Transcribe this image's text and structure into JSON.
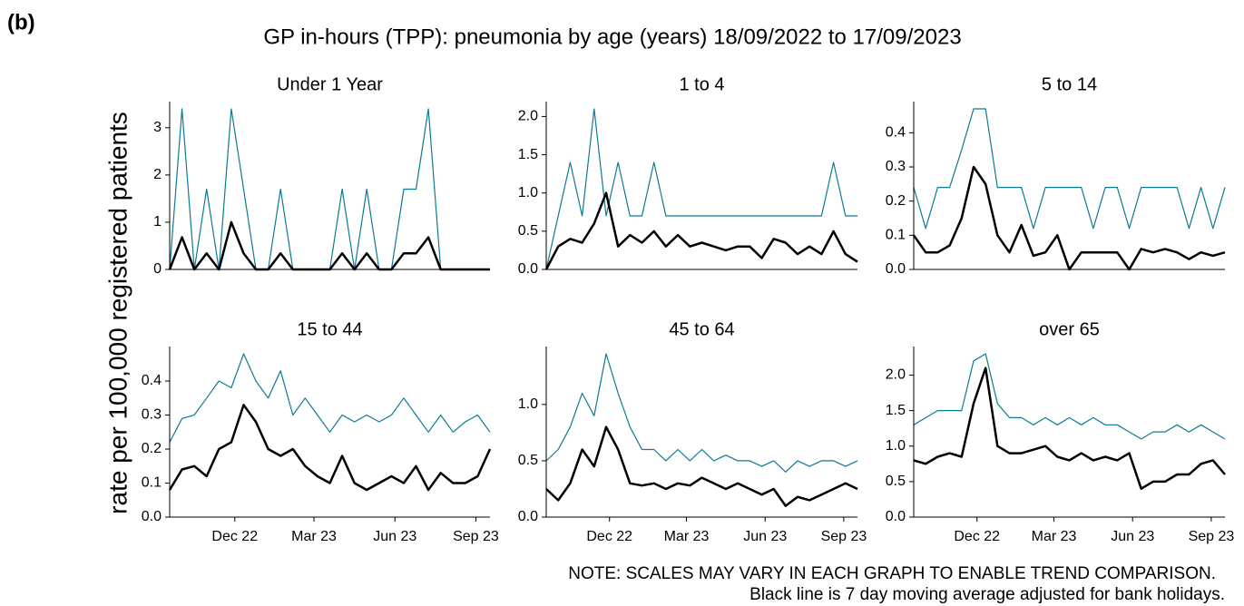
{
  "panel_label": "(b)",
  "title": "GP in-hours (TPP): pneumonia by age (years) 18/09/2022 to 17/09/2023",
  "y_axis_label": "rate per 100,000 registered patients",
  "notes": [
    "NOTE: SCALES MAY VARY IN EACH GRAPH TO ENABLE TREND COMPARISON.",
    "Black line is 7 day moving average adjusted for bank holidays."
  ],
  "chart_data": [
    {
      "type": "line",
      "title": "Under 1 Year",
      "x": [
        0,
        14,
        28,
        42,
        56,
        70,
        84,
        98,
        112,
        126,
        140,
        154,
        168,
        182,
        196,
        210,
        224,
        238,
        252,
        266,
        280,
        294,
        308,
        322,
        336,
        350,
        364
      ],
      "xlim": [
        0,
        364
      ],
      "xticks": [
        {
          "value": 74,
          "label": "Dec 22"
        },
        {
          "value": 164,
          "label": "Mar 23"
        },
        {
          "value": 256,
          "label": "Jun 23"
        },
        {
          "value": 348,
          "label": "Sep 23"
        }
      ],
      "ylim": [
        0,
        3.4
      ],
      "yticks": [
        0,
        1,
        2,
        3
      ],
      "series": [
        {
          "color": "#0b7b94",
          "values": [
            0,
            3.4,
            0,
            1.7,
            0,
            3.4,
            1.7,
            0,
            0,
            1.7,
            0,
            0,
            0,
            0,
            1.7,
            0,
            1.7,
            0,
            0,
            1.7,
            1.7,
            3.4,
            0,
            0,
            0,
            0,
            0
          ]
        },
        {
          "color": "#000000",
          "values": [
            0,
            0.68,
            0,
            0.34,
            0,
            1.0,
            0.34,
            0,
            0,
            0.34,
            0,
            0,
            0,
            0,
            0.34,
            0,
            0.34,
            0,
            0,
            0.34,
            0.34,
            0.68,
            0,
            0,
            0,
            0,
            0
          ]
        }
      ]
    },
    {
      "type": "line",
      "title": "1 to 4",
      "x": [
        0,
        14,
        28,
        42,
        56,
        70,
        84,
        98,
        112,
        126,
        140,
        154,
        168,
        182,
        196,
        210,
        224,
        238,
        252,
        266,
        280,
        294,
        308,
        322,
        336,
        350,
        364
      ],
      "xlim": [
        0,
        364
      ],
      "xticks": [
        {
          "value": 74,
          "label": "Dec 22"
        },
        {
          "value": 164,
          "label": "Mar 23"
        },
        {
          "value": 256,
          "label": "Jun 23"
        },
        {
          "value": 348,
          "label": "Sep 23"
        }
      ],
      "ylim": [
        0,
        2.1
      ],
      "yticks": [
        {
          "value": 0,
          "label": "0.0"
        },
        0.5,
        {
          "value": 1,
          "label": "1.0"
        },
        1.5,
        {
          "value": 2,
          "label": "2.0"
        }
      ],
      "series": [
        {
          "color": "#0b7b94",
          "values": [
            0,
            0.7,
            1.4,
            0.7,
            2.1,
            0.7,
            1.4,
            0.7,
            0.7,
            1.4,
            0.7,
            0.7,
            0.7,
            0.7,
            0.7,
            0.7,
            0.7,
            0.7,
            0.7,
            0.7,
            0.7,
            0.7,
            0.7,
            0.7,
            1.4,
            0.7,
            0.7
          ]
        },
        {
          "color": "#000000",
          "values": [
            0,
            0.3,
            0.4,
            0.35,
            0.6,
            1.0,
            0.3,
            0.45,
            0.35,
            0.5,
            0.3,
            0.45,
            0.3,
            0.35,
            0.3,
            0.25,
            0.3,
            0.3,
            0.15,
            0.4,
            0.35,
            0.2,
            0.3,
            0.2,
            0.5,
            0.2,
            0.1
          ]
        }
      ]
    },
    {
      "type": "line",
      "title": "5 to 14",
      "x": [
        0,
        14,
        28,
        42,
        56,
        70,
        84,
        98,
        112,
        126,
        140,
        154,
        168,
        182,
        196,
        210,
        224,
        238,
        252,
        266,
        280,
        294,
        308,
        322,
        336,
        350,
        364
      ],
      "xlim": [
        0,
        364
      ],
      "xticks": [
        {
          "value": 74,
          "label": "Dec 22"
        },
        {
          "value": 164,
          "label": "Mar 23"
        },
        {
          "value": 256,
          "label": "Jun 23"
        },
        {
          "value": 348,
          "label": "Sep 23"
        }
      ],
      "ylim": [
        0,
        0.47
      ],
      "yticks": [
        {
          "value": 0,
          "label": "0.0"
        },
        0.1,
        0.2,
        0.3,
        0.4
      ],
      "series": [
        {
          "color": "#0b7b94",
          "values": [
            0.24,
            0.12,
            0.24,
            0.24,
            0.35,
            0.47,
            0.47,
            0.24,
            0.24,
            0.24,
            0.12,
            0.24,
            0.24,
            0.24,
            0.24,
            0.12,
            0.24,
            0.24,
            0.12,
            0.24,
            0.24,
            0.24,
            0.24,
            0.12,
            0.24,
            0.12,
            0.24
          ]
        },
        {
          "color": "#000000",
          "values": [
            0.1,
            0.05,
            0.05,
            0.07,
            0.15,
            0.3,
            0.25,
            0.1,
            0.05,
            0.13,
            0.04,
            0.05,
            0.1,
            0,
            0.05,
            0.05,
            0.05,
            0.05,
            0,
            0.06,
            0.05,
            0.06,
            0.05,
            0.03,
            0.05,
            0.04,
            0.05
          ]
        }
      ]
    },
    {
      "type": "line",
      "title": "15 to 44",
      "x": [
        0,
        14,
        28,
        42,
        56,
        70,
        84,
        98,
        112,
        126,
        140,
        154,
        168,
        182,
        196,
        210,
        224,
        238,
        252,
        266,
        280,
        294,
        308,
        322,
        336,
        350,
        364
      ],
      "xlim": [
        0,
        364
      ],
      "xticks": [
        {
          "value": 74,
          "label": "Dec 22"
        },
        {
          "value": 164,
          "label": "Mar 23"
        },
        {
          "value": 256,
          "label": "Jun 23"
        },
        {
          "value": 348,
          "label": "Sep 23"
        }
      ],
      "ylim": [
        0,
        0.48
      ],
      "yticks": [
        {
          "value": 0,
          "label": "0.0"
        },
        0.1,
        0.2,
        0.3,
        0.4
      ],
      "series": [
        {
          "color": "#0b7b94",
          "values": [
            0.22,
            0.29,
            0.3,
            0.35,
            0.4,
            0.38,
            0.48,
            0.4,
            0.35,
            0.43,
            0.3,
            0.35,
            0.3,
            0.25,
            0.3,
            0.28,
            0.3,
            0.28,
            0.3,
            0.35,
            0.3,
            0.25,
            0.3,
            0.25,
            0.28,
            0.3,
            0.25
          ]
        },
        {
          "color": "#000000",
          "values": [
            0.08,
            0.14,
            0.15,
            0.12,
            0.2,
            0.22,
            0.33,
            0.28,
            0.2,
            0.18,
            0.2,
            0.15,
            0.12,
            0.1,
            0.18,
            0.1,
            0.08,
            0.1,
            0.12,
            0.1,
            0.15,
            0.08,
            0.13,
            0.1,
            0.1,
            0.12,
            0.2
          ]
        }
      ]
    },
    {
      "type": "line",
      "title": "45 to 64",
      "x": [
        0,
        14,
        28,
        42,
        56,
        70,
        84,
        98,
        112,
        126,
        140,
        154,
        168,
        182,
        196,
        210,
        224,
        238,
        252,
        266,
        280,
        294,
        308,
        322,
        336,
        350,
        364
      ],
      "xlim": [
        0,
        364
      ],
      "xticks": [
        {
          "value": 74,
          "label": "Dec 22"
        },
        {
          "value": 164,
          "label": "Mar 23"
        },
        {
          "value": 256,
          "label": "Jun 23"
        },
        {
          "value": 348,
          "label": "Sep 23"
        }
      ],
      "ylim": [
        0,
        1.45
      ],
      "yticks": [
        {
          "value": 0,
          "label": "0.0"
        },
        0.5,
        {
          "value": 1,
          "label": "1.0"
        }
      ],
      "series": [
        {
          "color": "#0b7b94",
          "values": [
            0.5,
            0.6,
            0.8,
            1.1,
            0.9,
            1.45,
            1.1,
            0.8,
            0.6,
            0.6,
            0.5,
            0.6,
            0.5,
            0.6,
            0.5,
            0.55,
            0.5,
            0.5,
            0.45,
            0.5,
            0.4,
            0.5,
            0.45,
            0.5,
            0.5,
            0.45,
            0.5
          ]
        },
        {
          "color": "#000000",
          "values": [
            0.25,
            0.15,
            0.3,
            0.6,
            0.45,
            0.8,
            0.6,
            0.3,
            0.28,
            0.3,
            0.25,
            0.3,
            0.28,
            0.35,
            0.3,
            0.25,
            0.3,
            0.25,
            0.2,
            0.25,
            0.1,
            0.18,
            0.15,
            0.2,
            0.25,
            0.3,
            0.25
          ]
        }
      ]
    },
    {
      "type": "line",
      "title": "over 65",
      "x": [
        0,
        14,
        28,
        42,
        56,
        70,
        84,
        98,
        112,
        126,
        140,
        154,
        168,
        182,
        196,
        210,
        224,
        238,
        252,
        266,
        280,
        294,
        308,
        322,
        336,
        350,
        364
      ],
      "xlim": [
        0,
        364
      ],
      "xticks": [
        {
          "value": 74,
          "label": "Dec 22"
        },
        {
          "value": 164,
          "label": "Mar 23"
        },
        {
          "value": 256,
          "label": "Jun 23"
        },
        {
          "value": 348,
          "label": "Sep 23"
        }
      ],
      "ylim": [
        0,
        2.3
      ],
      "yticks": [
        {
          "value": 0,
          "label": "0.0"
        },
        0.5,
        {
          "value": 1,
          "label": "1.0"
        },
        1.5,
        {
          "value": 2,
          "label": "2.0"
        }
      ],
      "series": [
        {
          "color": "#0b7b94",
          "values": [
            1.3,
            1.4,
            1.5,
            1.5,
            1.5,
            2.2,
            2.3,
            1.6,
            1.4,
            1.4,
            1.3,
            1.4,
            1.3,
            1.4,
            1.3,
            1.4,
            1.3,
            1.3,
            1.2,
            1.1,
            1.2,
            1.2,
            1.3,
            1.2,
            1.3,
            1.2,
            1.1
          ]
        },
        {
          "color": "#000000",
          "values": [
            0.8,
            0.75,
            0.85,
            0.9,
            0.85,
            1.6,
            2.1,
            1.0,
            0.9,
            0.9,
            0.95,
            1.0,
            0.85,
            0.8,
            0.9,
            0.8,
            0.85,
            0.8,
            0.9,
            0.4,
            0.5,
            0.5,
            0.6,
            0.6,
            0.75,
            0.8,
            0.6
          ]
        }
      ]
    }
  ]
}
